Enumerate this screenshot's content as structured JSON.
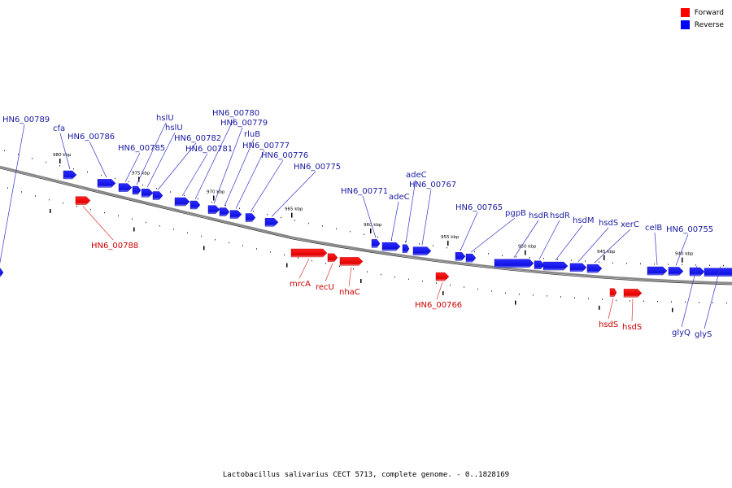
{
  "caption": "Lactobacillus salivarius CECT 5713, complete genome. - 0..1828169",
  "legend": [
    {
      "label": "Forward",
      "color": "#ff0000"
    },
    {
      "label": "Reverse",
      "color": "#0000ff"
    }
  ],
  "colors": {
    "forward": "#ff0000",
    "reverse": "#1a1aff",
    "backbone": "#888888",
    "label_forward": "#cc0000",
    "label_reverse": "#1a1aa0"
  },
  "tick_labels": [
    "980 kbp",
    "975 kbp",
    "970 kbp",
    "965 kbp",
    "960 kbp",
    "955 kbp",
    "950 kbp",
    "945 kbp",
    "940 kbp"
  ],
  "genes": [
    {
      "label": "HN6_00789",
      "strand": "reverse"
    },
    {
      "label": "cfa",
      "strand": "reverse"
    },
    {
      "label": "HN6_00786",
      "strand": "reverse"
    },
    {
      "label": "HN6_00785",
      "strand": "reverse"
    },
    {
      "label": "hslU",
      "strand": "reverse"
    },
    {
      "label": "hslU",
      "strand": "reverse"
    },
    {
      "label": "HN6_00782",
      "strand": "reverse"
    },
    {
      "label": "HN6_00781",
      "strand": "reverse"
    },
    {
      "label": "HN6_00780",
      "strand": "reverse"
    },
    {
      "label": "HN6_00779",
      "strand": "reverse"
    },
    {
      "label": "rluB",
      "strand": "reverse"
    },
    {
      "label": "HN6_00777",
      "strand": "reverse"
    },
    {
      "label": "HN6_00776",
      "strand": "reverse"
    },
    {
      "label": "HN6_00775",
      "strand": "reverse"
    },
    {
      "label": "HN6_00771",
      "strand": "reverse"
    },
    {
      "label": "adeC",
      "strand": "reverse"
    },
    {
      "label": "adeC",
      "strand": "reverse"
    },
    {
      "label": "HN6_00767",
      "strand": "reverse"
    },
    {
      "label": "HN6_00765",
      "strand": "reverse"
    },
    {
      "label": "pgpB",
      "strand": "reverse"
    },
    {
      "label": "hsdR",
      "strand": "reverse"
    },
    {
      "label": "hsdR",
      "strand": "reverse"
    },
    {
      "label": "hsdM",
      "strand": "reverse"
    },
    {
      "label": "hsdS",
      "strand": "reverse"
    },
    {
      "label": "xerC",
      "strand": "reverse"
    },
    {
      "label": "celB",
      "strand": "reverse"
    },
    {
      "label": "HN6_00755",
      "strand": "reverse"
    },
    {
      "label": "glyQ",
      "strand": "reverse"
    },
    {
      "label": "glyS",
      "strand": "reverse"
    },
    {
      "label": "HN6_00788",
      "strand": "forward"
    },
    {
      "label": "mrcA",
      "strand": "forward"
    },
    {
      "label": "recU",
      "strand": "forward"
    },
    {
      "label": "nhaC",
      "strand": "forward"
    },
    {
      "label": "HN6_00766",
      "strand": "forward"
    },
    {
      "label": "hsdS",
      "strand": "forward"
    },
    {
      "label": "hsdS",
      "strand": "forward"
    }
  ]
}
